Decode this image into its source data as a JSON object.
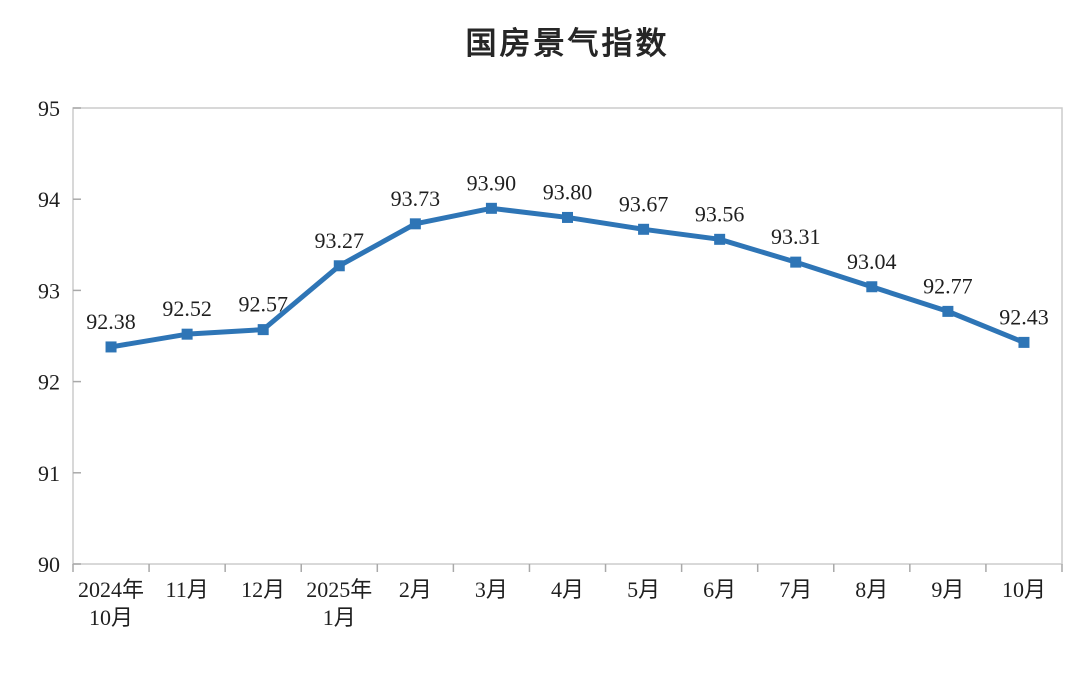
{
  "chart_data": {
    "type": "line",
    "title": "国房景气指数",
    "series_name": "国房景气指数",
    "categories": [
      "2024年\n10月",
      "11月",
      "12月",
      "2025年\n1月",
      "2月",
      "3月",
      "4月",
      "5月",
      "6月",
      "7月",
      "8月",
      "9月",
      "10月"
    ],
    "values": [
      92.38,
      92.52,
      92.57,
      93.27,
      93.73,
      93.9,
      93.8,
      93.67,
      93.56,
      93.31,
      93.04,
      92.77,
      92.43
    ],
    "data_labels": [
      "92.38",
      "92.52",
      "92.57",
      "93.27",
      "93.73",
      "93.90",
      "93.80",
      "93.67",
      "93.56",
      "93.31",
      "93.04",
      "92.77",
      "92.43"
    ],
    "xlabel": "",
    "ylabel": "",
    "ylim": [
      90,
      95
    ],
    "yticks": [
      90,
      91,
      92,
      93,
      94,
      95
    ],
    "grid": false,
    "legend": "none",
    "marker": "square",
    "colors": {
      "line": "#2E75B6",
      "marker": "#2E75B6",
      "plot_border": "#CCCCCC",
      "tick": "#A9A9A9",
      "text": "#1F1F1F",
      "title": "#262626",
      "background": "#FFFFFF"
    }
  }
}
